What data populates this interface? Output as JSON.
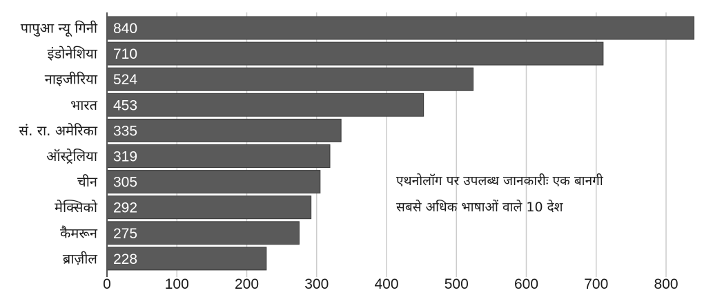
{
  "chart_data": {
    "type": "bar",
    "orientation": "horizontal",
    "categories": [
      "पापुआ न्यू गिनी",
      "इंडोनेशिया",
      "नाइजीरिया",
      "भारत",
      "सं. रा. अमेरिका",
      "ऑस्ट्रेलिया",
      "चीन",
      "मेक्सिको",
      "कैमरून",
      "ब्राज़ील"
    ],
    "values": [
      840,
      710,
      524,
      453,
      335,
      319,
      305,
      292,
      275,
      228
    ],
    "value_labels": [
      "840",
      "710",
      "524",
      "453",
      "335",
      "319",
      "305",
      "292",
      "275",
      "228"
    ],
    "xlim": [
      0,
      850
    ],
    "xticks": [
      0,
      100,
      200,
      300,
      400,
      500,
      600,
      700,
      800
    ],
    "xtick_labels": [
      "0",
      "100",
      "200",
      "300",
      "400",
      "500",
      "600",
      "700",
      "800"
    ],
    "grid": "vertical",
    "annotation": {
      "line1": "एथनोलॉग पर उपलब्ध जानकारीः एक बानगी",
      "line2": "सबसे अधिक भाषाओं वाले 10 देश"
    },
    "colors": {
      "bar": "#5a5a5a",
      "bar_border": "#3a3a3a",
      "grid": "#cccccc",
      "value_text": "#ffffff",
      "text": "#1a1a1a"
    }
  }
}
